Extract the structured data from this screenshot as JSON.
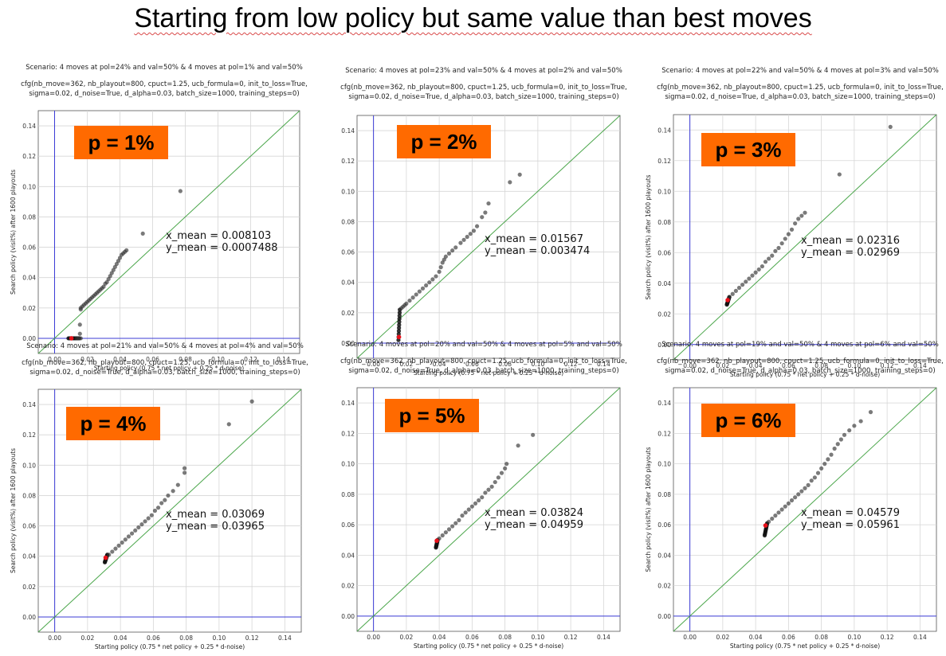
{
  "slide": {
    "title": "Starting from low policy but same value than best moves"
  },
  "colors": {
    "badge": "#ff6a00",
    "diagonal": "#4aa64a",
    "axis_lines": "#3b3bd6",
    "points": "#333333",
    "highlight": "#e8101a"
  },
  "chart_data": [
    {
      "type": "scatter",
      "scenario": "Scenario: 4 moves at pol=24% and val=50% & 4 moves at pol=1% and val=50%",
      "config_line1": "cfg(nb_move=362, nb_playout=800, cpuct=1.25, ucb_formula=0, init_to_loss=True,",
      "config_line2": "sigma=0.02, d_noise=True, d_alpha=0.03, batch_size=1000, training_steps=0)",
      "badge": "p = 1%",
      "x_mean_text": "x_mean = 0.008103",
      "y_mean_text": "y_mean = 0.0007488",
      "xlabel": "Starting policy (0.75 * net policy + 0.25 * d-noise)",
      "ylabel": "Search policy (visit%) after 1600 playouts",
      "xlim": [
        -0.01,
        0.15
      ],
      "ylim": [
        -0.01,
        0.15
      ],
      "xticks": [
        "0.00",
        "0.02",
        "0.04",
        "0.06",
        "0.08",
        "0.10",
        "0.12",
        "0.14"
      ],
      "yticks": [
        "0.00",
        "0.02",
        "0.04",
        "0.06",
        "0.08",
        "0.10",
        "0.12",
        "0.14"
      ],
      "grid": true,
      "floor": 0.0,
      "cluster_start": [
        0.0085,
        0.0
      ],
      "cluster_end": [
        0.015,
        0.0
      ],
      "highlight": [
        0.0103,
        0.0
      ],
      "points": [
        [
          0.0135,
          0.0
        ],
        [
          0.0145,
          0.0
        ],
        [
          0.0152,
          0.0
        ],
        [
          0.016,
          0.0
        ],
        [
          0.0155,
          0.003
        ],
        [
          0.0155,
          0.009
        ],
        [
          0.016,
          0.019
        ],
        [
          0.016,
          0.02
        ],
        [
          0.017,
          0.021
        ],
        [
          0.018,
          0.022
        ],
        [
          0.019,
          0.023
        ],
        [
          0.02,
          0.024
        ],
        [
          0.021,
          0.025
        ],
        [
          0.022,
          0.026
        ],
        [
          0.023,
          0.027
        ],
        [
          0.024,
          0.028
        ],
        [
          0.025,
          0.029
        ],
        [
          0.026,
          0.03
        ],
        [
          0.027,
          0.031
        ],
        [
          0.028,
          0.032
        ],
        [
          0.029,
          0.033
        ],
        [
          0.03,
          0.034
        ],
        [
          0.031,
          0.036
        ],
        [
          0.032,
          0.037
        ],
        [
          0.033,
          0.039
        ],
        [
          0.034,
          0.041
        ],
        [
          0.035,
          0.043
        ],
        [
          0.036,
          0.045
        ],
        [
          0.037,
          0.047
        ],
        [
          0.038,
          0.049
        ],
        [
          0.039,
          0.051
        ],
        [
          0.04,
          0.053
        ],
        [
          0.041,
          0.055
        ],
        [
          0.042,
          0.056
        ],
        [
          0.043,
          0.057
        ],
        [
          0.044,
          0.058
        ],
        [
          0.054,
          0.069
        ],
        [
          0.077,
          0.097
        ]
      ]
    },
    {
      "type": "scatter",
      "scenario": "Scenario: 4 moves at pol=23% and val=50% & 4 moves at pol=2% and val=50%",
      "config_line1": "cfg(nb_move=362, nb_playout=800, cpuct=1.25, ucb_formula=0, init_to_loss=True,",
      "config_line2": "sigma=0.02, d_noise=True, d_alpha=0.03, batch_size=1000, training_steps=0)",
      "badge": "p = 2%",
      "x_mean_text": "x_mean = 0.01567",
      "y_mean_text": "y_mean = 0.003474",
      "xlabel": "Starting policy (0.75 * net policy + 0.25 * d-noise)",
      "ylabel": "",
      "xlim": [
        -0.01,
        0.15
      ],
      "ylim": [
        -0.01,
        0.15
      ],
      "xticks": [
        "0.00",
        "0.02",
        "0.04",
        "0.06",
        "0.08",
        "0.10",
        "0.12",
        "0.14"
      ],
      "yticks": [
        "0.00",
        "0.02",
        "0.04",
        "0.06",
        "0.08",
        "0.10",
        "0.12",
        "0.14"
      ],
      "grid": true,
      "floor": 0.002,
      "cluster_start": [
        0.0152,
        0.002
      ],
      "cluster_end": [
        0.016,
        0.022
      ],
      "highlight": [
        0.0155,
        0.004
      ],
      "points": [
        [
          0.017,
          0.023
        ],
        [
          0.018,
          0.024
        ],
        [
          0.019,
          0.025
        ],
        [
          0.02,
          0.026
        ],
        [
          0.022,
          0.028
        ],
        [
          0.024,
          0.03
        ],
        [
          0.026,
          0.032
        ],
        [
          0.028,
          0.034
        ],
        [
          0.03,
          0.036
        ],
        [
          0.032,
          0.038
        ],
        [
          0.034,
          0.04
        ],
        [
          0.036,
          0.042
        ],
        [
          0.038,
          0.044
        ],
        [
          0.04,
          0.047
        ],
        [
          0.041,
          0.05
        ],
        [
          0.042,
          0.053
        ],
        [
          0.043,
          0.055
        ],
        [
          0.044,
          0.057
        ],
        [
          0.046,
          0.059
        ],
        [
          0.048,
          0.061
        ],
        [
          0.05,
          0.063
        ],
        [
          0.053,
          0.066
        ],
        [
          0.055,
          0.068
        ],
        [
          0.057,
          0.07
        ],
        [
          0.059,
          0.072
        ],
        [
          0.061,
          0.074
        ],
        [
          0.063,
          0.077
        ],
        [
          0.066,
          0.083
        ],
        [
          0.068,
          0.086
        ],
        [
          0.07,
          0.092
        ],
        [
          0.083,
          0.106
        ],
        [
          0.089,
          0.111
        ]
      ]
    },
    {
      "type": "scatter",
      "scenario": "Scenario: 4 moves at pol=22% and val=50% & 4 moves at pol=3% and val=50%",
      "config_line1": "cfg(nb_move=362, nb_playout=800, cpuct=1.25, ucb_formula=0, init_to_loss=True,",
      "config_line2": "sigma=0.02, d_noise=True, d_alpha=0.03, batch_size=1000, training_steps=0)",
      "badge": "p = 3%",
      "x_mean_text": "x_mean = 0.02316",
      "y_mean_text": "y_mean = 0.02969",
      "xlabel": "Starting policy (0.75 * net policy + 0.25 * d-noise)",
      "ylabel": "Search policy (visit%) after 1600 playouts",
      "xlim": [
        -0.01,
        0.15
      ],
      "ylim": [
        -0.01,
        0.15
      ],
      "xticks": [
        "0.00",
        "0.02",
        "0.04",
        "0.06",
        "0.08",
        "0.10",
        "0.12",
        "0.14"
      ],
      "yticks": [
        "0.00",
        "0.02",
        "0.04",
        "0.06",
        "0.08",
        "0.10",
        "0.12",
        "0.14"
      ],
      "grid": true,
      "floor": 0.026,
      "cluster_start": [
        0.0225,
        0.026
      ],
      "cluster_end": [
        0.024,
        0.031
      ],
      "highlight": [
        0.023,
        0.029
      ],
      "points": [
        [
          0.024,
          0.031
        ],
        [
          0.026,
          0.033
        ],
        [
          0.028,
          0.035
        ],
        [
          0.03,
          0.037
        ],
        [
          0.032,
          0.039
        ],
        [
          0.034,
          0.041
        ],
        [
          0.036,
          0.043
        ],
        [
          0.038,
          0.045
        ],
        [
          0.04,
          0.047
        ],
        [
          0.042,
          0.049
        ],
        [
          0.044,
          0.051
        ],
        [
          0.046,
          0.054
        ],
        [
          0.048,
          0.056
        ],
        [
          0.05,
          0.058
        ],
        [
          0.052,
          0.061
        ],
        [
          0.054,
          0.063
        ],
        [
          0.056,
          0.066
        ],
        [
          0.058,
          0.069
        ],
        [
          0.06,
          0.072
        ],
        [
          0.062,
          0.075
        ],
        [
          0.064,
          0.079
        ],
        [
          0.066,
          0.082
        ],
        [
          0.068,
          0.084
        ],
        [
          0.07,
          0.086
        ],
        [
          0.091,
          0.111
        ],
        [
          0.122,
          0.142
        ]
      ]
    },
    {
      "type": "scatter",
      "scenario": "Scenario: 4 moves at pol=21% and val=50% & 4 moves at pol=4% and val=50%",
      "config_line1": "cfg(nb_move=362, nb_playout=800, cpuct=1.25, ucb_formula=0, init_to_loss=True,",
      "config_line2": "sigma=0.02, d_noise=True, d_alpha=0.03, batch_size=1000, training_steps=0)",
      "badge": "p = 4%",
      "x_mean_text": "x_mean = 0.03069",
      "y_mean_text": "y_mean = 0.03965",
      "xlabel": "Starting policy (0.75 * net policy + 0.25 * d-noise)",
      "ylabel": "Search policy (visit%) after 1600 playouts",
      "xlim": [
        -0.01,
        0.15
      ],
      "ylim": [
        -0.01,
        0.15
      ],
      "xticks": [
        "0.00",
        "0.02",
        "0.04",
        "0.06",
        "0.08",
        "0.10",
        "0.12",
        "0.14"
      ],
      "yticks": [
        "0.00",
        "0.02",
        "0.04",
        "0.06",
        "0.08",
        "0.10",
        "0.12",
        "0.14"
      ],
      "grid": true,
      "floor": 0.036,
      "cluster_start": [
        0.0305,
        0.036
      ],
      "cluster_end": [
        0.032,
        0.041
      ],
      "highlight": [
        0.031,
        0.039
      ],
      "points": [
        [
          0.033,
          0.041
        ],
        [
          0.035,
          0.043
        ],
        [
          0.037,
          0.045
        ],
        [
          0.039,
          0.047
        ],
        [
          0.041,
          0.049
        ],
        [
          0.043,
          0.051
        ],
        [
          0.045,
          0.053
        ],
        [
          0.047,
          0.055
        ],
        [
          0.049,
          0.057
        ],
        [
          0.051,
          0.059
        ],
        [
          0.053,
          0.061
        ],
        [
          0.055,
          0.063
        ],
        [
          0.057,
          0.065
        ],
        [
          0.059,
          0.067
        ],
        [
          0.061,
          0.07
        ],
        [
          0.063,
          0.072
        ],
        [
          0.065,
          0.075
        ],
        [
          0.067,
          0.077
        ],
        [
          0.069,
          0.08
        ],
        [
          0.072,
          0.083
        ],
        [
          0.075,
          0.087
        ],
        [
          0.079,
          0.095
        ],
        [
          0.079,
          0.098
        ],
        [
          0.106,
          0.127
        ],
        [
          0.12,
          0.142
        ]
      ]
    },
    {
      "type": "scatter",
      "scenario": "Scenario: 4 moves at pol=20% and val=50% & 4 moves at pol=5% and val=50%",
      "config_line1": "cfg(nb_move=362, nb_playout=800, cpuct=1.25, ucb_formula=0, init_to_loss=True,",
      "config_line2": "sigma=0.02, d_noise=True, d_alpha=0.03, batch_size=1000, training_steps=0)",
      "badge": "p = 5%",
      "x_mean_text": "x_mean = 0.03824",
      "y_mean_text": "y_mean = 0.04959",
      "xlabel": "Starting policy (0.75 * net policy + 0.25 * d-noise)",
      "ylabel": "",
      "xlim": [
        -0.01,
        0.15
      ],
      "ylim": [
        -0.01,
        0.15
      ],
      "xticks": [
        "0.00",
        "0.02",
        "0.04",
        "0.06",
        "0.08",
        "0.10",
        "0.12",
        "0.14"
      ],
      "yticks": [
        "0.00",
        "0.02",
        "0.04",
        "0.06",
        "0.08",
        "0.10",
        "0.12",
        "0.14"
      ],
      "grid": true,
      "floor": 0.045,
      "cluster_start": [
        0.038,
        0.045
      ],
      "cluster_end": [
        0.039,
        0.05
      ],
      "highlight": [
        0.0385,
        0.0495
      ],
      "points": [
        [
          0.04,
          0.051
        ],
        [
          0.042,
          0.053
        ],
        [
          0.044,
          0.055
        ],
        [
          0.046,
          0.057
        ],
        [
          0.048,
          0.059
        ],
        [
          0.05,
          0.061
        ],
        [
          0.052,
          0.063
        ],
        [
          0.054,
          0.066
        ],
        [
          0.056,
          0.068
        ],
        [
          0.058,
          0.07
        ],
        [
          0.06,
          0.072
        ],
        [
          0.062,
          0.074
        ],
        [
          0.064,
          0.076
        ],
        [
          0.066,
          0.078
        ],
        [
          0.068,
          0.081
        ],
        [
          0.07,
          0.083
        ],
        [
          0.072,
          0.085
        ],
        [
          0.074,
          0.088
        ],
        [
          0.076,
          0.091
        ],
        [
          0.078,
          0.094
        ],
        [
          0.08,
          0.097
        ],
        [
          0.081,
          0.1
        ],
        [
          0.088,
          0.112
        ],
        [
          0.097,
          0.119
        ]
      ]
    },
    {
      "type": "scatter",
      "scenario": "Scenario: 4 moves at pol=19% and val=50% & 4 moves at pol=6% and val=50%",
      "config_line1": "cfg(nb_move=362, nb_playout=800, cpuct=1.25, ucb_formula=0, init_to_loss=True,",
      "config_line2": "sigma=0.02, d_noise=True, d_alpha=0.03, batch_size=1000, training_steps=0)",
      "badge": "p = 6%",
      "x_mean_text": "x_mean = 0.04579",
      "y_mean_text": "y_mean = 0.05961",
      "xlabel": "Starting policy (0.75 * net policy + 0.25 * d-noise)",
      "ylabel": "Search policy (visit%) after 1600 playouts",
      "xlim": [
        -0.01,
        0.15
      ],
      "ylim": [
        -0.01,
        0.15
      ],
      "xticks": [
        "0.00",
        "0.02",
        "0.04",
        "0.06",
        "0.08",
        "0.10",
        "0.12",
        "0.14"
      ],
      "yticks": [
        "0.00",
        "0.02",
        "0.04",
        "0.06",
        "0.08",
        "0.10",
        "0.12",
        "0.14"
      ],
      "grid": true,
      "floor": 0.053,
      "cluster_start": [
        0.0455,
        0.053
      ],
      "cluster_end": [
        0.047,
        0.061
      ],
      "highlight": [
        0.046,
        0.0595
      ],
      "points": [
        [
          0.048,
          0.062
        ],
        [
          0.05,
          0.064
        ],
        [
          0.052,
          0.066
        ],
        [
          0.054,
          0.068
        ],
        [
          0.056,
          0.07
        ],
        [
          0.058,
          0.072
        ],
        [
          0.06,
          0.074
        ],
        [
          0.062,
          0.076
        ],
        [
          0.064,
          0.078
        ],
        [
          0.066,
          0.08
        ],
        [
          0.068,
          0.082
        ],
        [
          0.07,
          0.084
        ],
        [
          0.072,
          0.086
        ],
        [
          0.074,
          0.089
        ],
        [
          0.076,
          0.091
        ],
        [
          0.078,
          0.094
        ],
        [
          0.08,
          0.097
        ],
        [
          0.082,
          0.1
        ],
        [
          0.084,
          0.103
        ],
        [
          0.086,
          0.106
        ],
        [
          0.088,
          0.11
        ],
        [
          0.09,
          0.113
        ],
        [
          0.092,
          0.116
        ],
        [
          0.094,
          0.119
        ],
        [
          0.097,
          0.122
        ],
        [
          0.1,
          0.125
        ],
        [
          0.104,
          0.128
        ],
        [
          0.11,
          0.134
        ]
      ]
    }
  ]
}
